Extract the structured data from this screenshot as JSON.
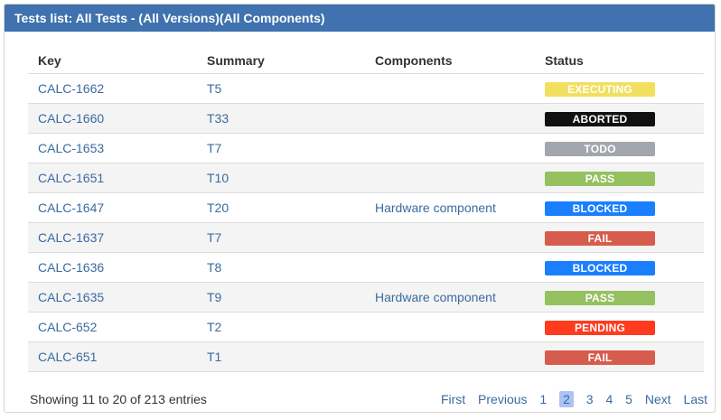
{
  "panel": {
    "title": "Tests list: All Tests - (All Versions)(All Components)"
  },
  "table": {
    "headers": [
      "Key",
      "Summary",
      "Components",
      "Status"
    ],
    "rows": [
      {
        "key": "CALC-1662",
        "summary": "T5",
        "component": "",
        "status": "EXECUTING"
      },
      {
        "key": "CALC-1660",
        "summary": "T33",
        "component": "",
        "status": "ABORTED"
      },
      {
        "key": "CALC-1653",
        "summary": "T7",
        "component": "",
        "status": "TODO"
      },
      {
        "key": "CALC-1651",
        "summary": "T10",
        "component": "",
        "status": "PASS"
      },
      {
        "key": "CALC-1647",
        "summary": "T20",
        "component": "Hardware component",
        "status": "BLOCKED"
      },
      {
        "key": "CALC-1637",
        "summary": "T7",
        "component": "",
        "status": "FAIL"
      },
      {
        "key": "CALC-1636",
        "summary": "T8",
        "component": "",
        "status": "BLOCKED"
      },
      {
        "key": "CALC-1635",
        "summary": "T9",
        "component": "Hardware component",
        "status": "PASS"
      },
      {
        "key": "CALC-652",
        "summary": "T2",
        "component": "",
        "status": "PENDING"
      },
      {
        "key": "CALC-651",
        "summary": "T1",
        "component": "",
        "status": "FAIL"
      }
    ]
  },
  "status_colors": {
    "EXECUTING": {
      "bg": "#f1e05f",
      "fg": "#ffffff"
    },
    "ABORTED": {
      "bg": "#111111",
      "fg": "#ffffff"
    },
    "TODO": {
      "bg": "#a2a6ad",
      "fg": "#ffffff"
    },
    "PASS": {
      "bg": "#95c160",
      "fg": "#ffffff"
    },
    "BLOCKED": {
      "bg": "#1a7fff",
      "fg": "#ffffff"
    },
    "FAIL": {
      "bg": "#d65c4d",
      "fg": "#ffffff"
    },
    "PENDING": {
      "bg": "#ff3b1f",
      "fg": "#ffffff"
    }
  },
  "footer": {
    "info": "Showing 11 to 20 of 213 entries",
    "pagination": {
      "first": "First",
      "previous": "Previous",
      "pages": [
        "1",
        "2",
        "3",
        "4",
        "5"
      ],
      "current": "2",
      "next": "Next",
      "last": "Last"
    }
  },
  "colors": {
    "header_bg": "#3f72af",
    "link": "#3a6aa0",
    "stripe": "#f4f4f4"
  }
}
